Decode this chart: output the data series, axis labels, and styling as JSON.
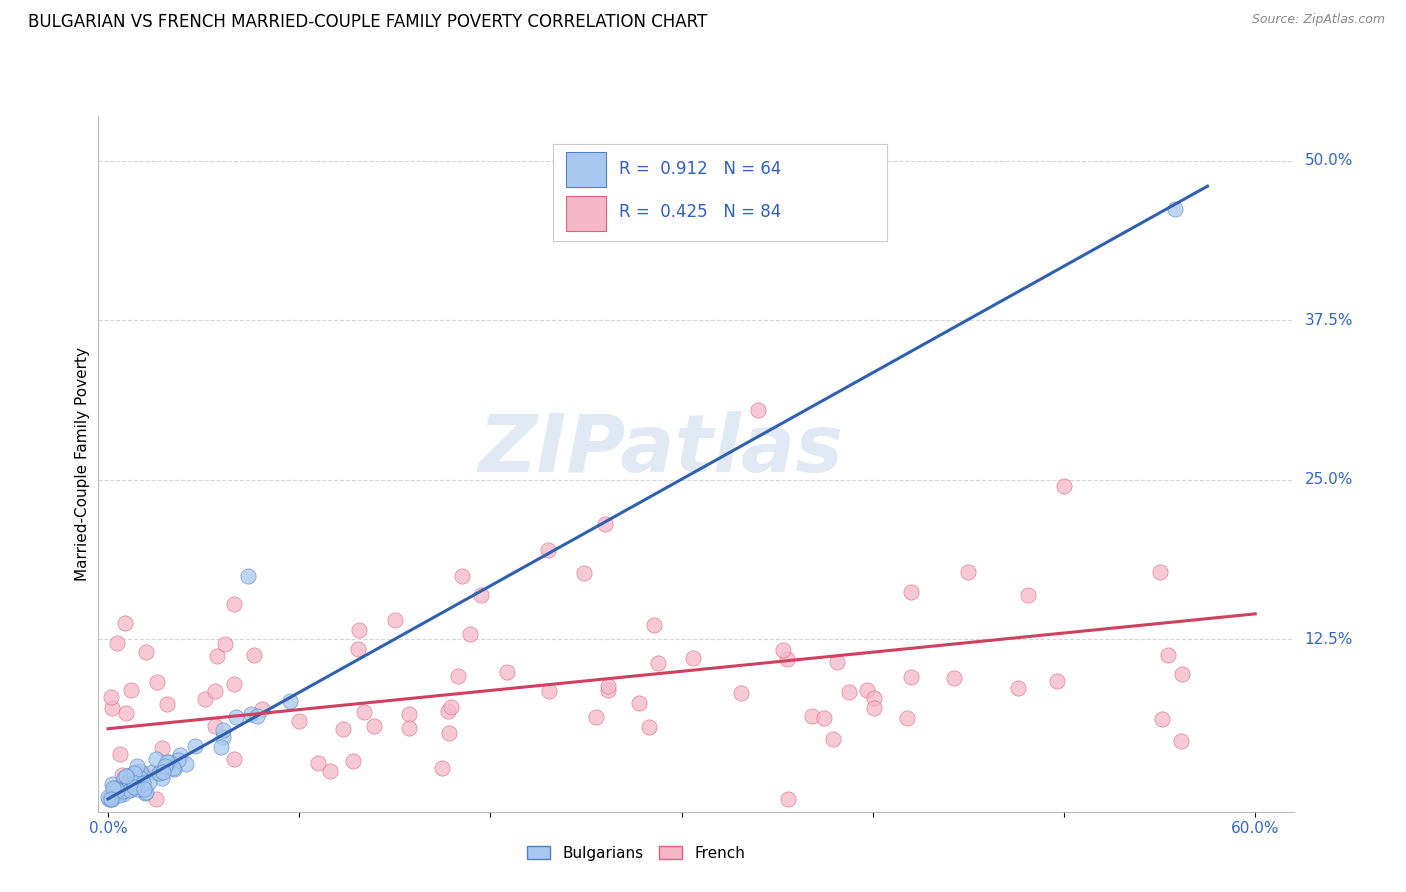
{
  "title": "BULGARIAN VS FRENCH MARRIED-COUPLE FAMILY POVERTY CORRELATION CHART",
  "source_text": "Source: ZipAtlas.com",
  "ylabel": "Married-Couple Family Poverty",
  "xlim": [
    -0.005,
    0.62
  ],
  "ylim": [
    -0.01,
    0.535
  ],
  "ytick_positions": [
    0.0,
    0.125,
    0.25,
    0.375,
    0.5
  ],
  "yticklabels_right": [
    "",
    "12.5%",
    "25.0%",
    "37.5%",
    "50.0%"
  ],
  "bulgarian_color": "#A8C8F0",
  "french_color": "#F5B8C8",
  "bulgarian_edge_color": "#5080C0",
  "french_edge_color": "#E06080",
  "bulgarian_line_color": "#3060B0",
  "french_line_color": "#D04060",
  "bg_color": "#FFFFFF",
  "grid_color": "#CCCCCC",
  "legend_R_color": "#3060C0",
  "R_bulgarian": 0.912,
  "N_bulgarian": 64,
  "R_french": 0.425,
  "N_french": 84,
  "bulgarian_trendline": [
    0.0,
    0.0,
    0.575,
    0.48
  ],
  "french_trendline": [
    0.0,
    0.055,
    0.6,
    0.145
  ],
  "watermark": "ZIPatlas",
  "legend_label1": "Bulgarians",
  "legend_label2": "French",
  "title_fontsize": 12,
  "axis_label_fontsize": 11,
  "tick_fontsize": 11,
  "point_size": 120
}
